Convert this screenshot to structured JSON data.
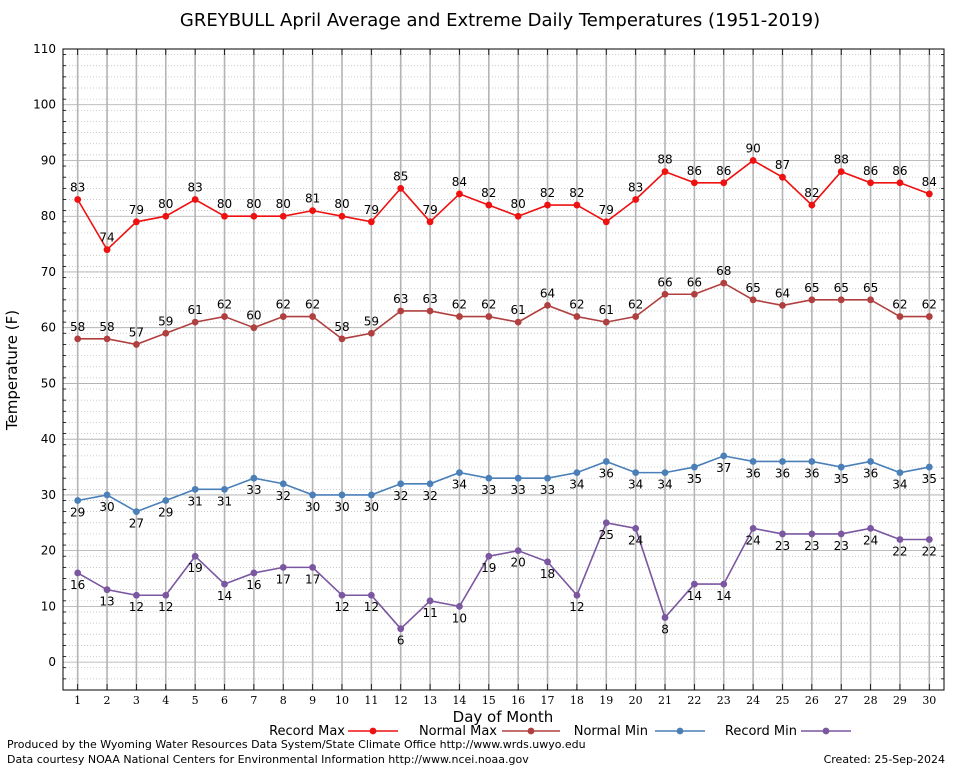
{
  "chart_data": {
    "type": "line",
    "title": "GREYBULL April Average and Extreme Daily Temperatures (1951-2019)",
    "xlabel": "Day of Month",
    "ylabel": "Temperature (F)",
    "xlim": [
      0.5,
      30.5
    ],
    "ylim": [
      -5,
      110
    ],
    "y_ticks": [
      0,
      10,
      20,
      30,
      40,
      50,
      60,
      70,
      80,
      90,
      100,
      110
    ],
    "x": [
      1,
      2,
      3,
      4,
      5,
      6,
      7,
      8,
      9,
      10,
      11,
      12,
      13,
      14,
      15,
      16,
      17,
      18,
      19,
      20,
      21,
      22,
      23,
      24,
      25,
      26,
      27,
      28,
      29,
      30
    ],
    "grid": true,
    "legend_position": "bottom",
    "series": [
      {
        "name": "Record Max",
        "color": "#ee1111",
        "label_pos": "above",
        "values": [
          83,
          74,
          79,
          80,
          83,
          80,
          80,
          80,
          81,
          80,
          79,
          85,
          79,
          84,
          82,
          80,
          82,
          82,
          79,
          83,
          88,
          86,
          86,
          90,
          87,
          82,
          88,
          86,
          86,
          84
        ]
      },
      {
        "name": "Normal Max",
        "color": "#b04040",
        "label_pos": "above",
        "values": [
          58,
          58,
          57,
          59,
          61,
          62,
          60,
          62,
          62,
          58,
          59,
          63,
          63,
          62,
          62,
          61,
          64,
          62,
          61,
          62,
          66,
          66,
          68,
          65,
          64,
          65,
          65,
          65,
          62,
          62
        ]
      },
      {
        "name": "Normal Min",
        "color": "#4a7fb8",
        "label_pos": "below",
        "values": [
          29,
          30,
          27,
          29,
          31,
          31,
          33,
          32,
          30,
          30,
          30,
          32,
          32,
          34,
          33,
          33,
          33,
          34,
          36,
          34,
          34,
          35,
          37,
          36,
          36,
          36,
          35,
          36,
          34,
          35
        ]
      },
      {
        "name": "Record Min",
        "color": "#7a57a0",
        "label_pos": "below",
        "values": [
          16,
          13,
          12,
          12,
          19,
          14,
          16,
          17,
          17,
          12,
          12,
          6,
          11,
          10,
          19,
          20,
          18,
          12,
          25,
          24,
          8,
          14,
          14,
          24,
          23,
          23,
          23,
          24,
          22,
          22
        ]
      }
    ]
  },
  "footer": {
    "produced_by": "Produced by the Wyoming Water Resources Data System/State Climate Office http://www.wrds.uwyo.edu",
    "courtesy": "Data courtesy NOAA National Centers for Environmental Information http://www.ncei.noaa.gov",
    "created": "Created:  25-Sep-2024"
  }
}
